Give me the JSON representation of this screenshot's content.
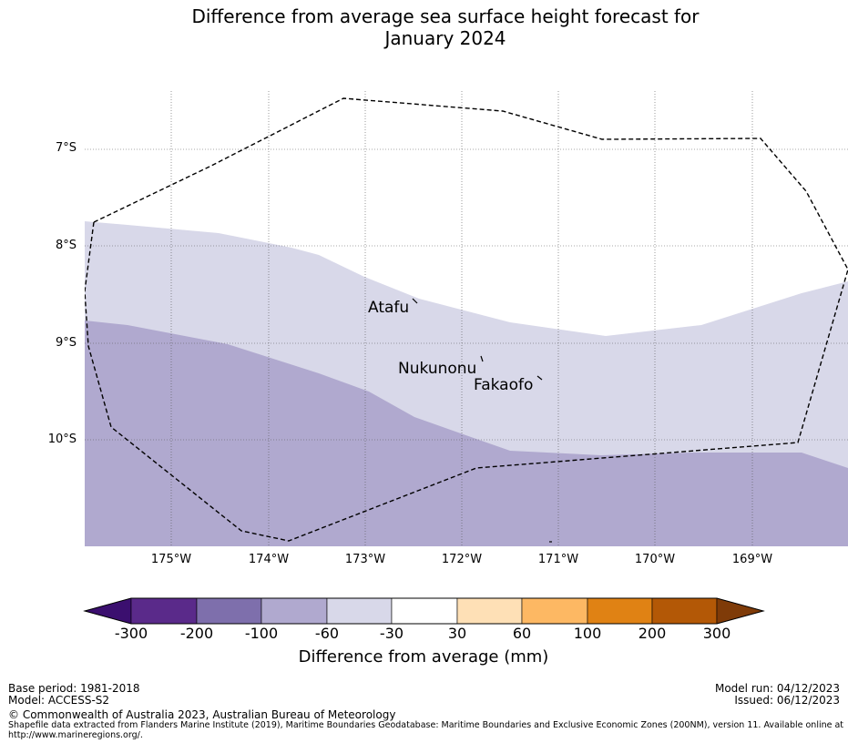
{
  "title_line1": "Difference from average sea surface height forecast for",
  "title_line2": "January 2024",
  "map": {
    "lat_labels": [
      "7°S",
      "8°S",
      "9°S",
      "10°S"
    ],
    "lon_labels": [
      "175°W",
      "174°W",
      "173°W",
      "172°W",
      "171°W",
      "170°W",
      "169°W"
    ],
    "places": {
      "atafu": "Atafu",
      "nukunonu": "Nukunonu",
      "fakaofo": "Fakaofo"
    },
    "colors": {
      "band_minus60_minus30": "#d8d8e9",
      "band_minus100_minus60": "#b0a9cf",
      "eez_line": "#000000",
      "grid": "#555555"
    }
  },
  "colorbar": {
    "labels": [
      "-300",
      "-200",
      "-100",
      "-60",
      "-30",
      "30",
      "60",
      "100",
      "200",
      "300"
    ],
    "colors": [
      "#3b0f6f",
      "#5a2a8a",
      "#7e6fac",
      "#b0a9cf",
      "#d8d8e9",
      "#ffffff",
      "#fee0b6",
      "#fdb863",
      "#e08214",
      "#b35806",
      "#7f3b08"
    ],
    "title": "Difference from average (mm)"
  },
  "footer": {
    "base_period": "Base period: 1981-2018",
    "model": "Model: ACCESS-S2",
    "model_run": "Model run: 04/12/2023",
    "issued": "Issued: 06/12/2023",
    "copyright": "© Commonwealth of Australia 2023, Australian Bureau of Meteorology",
    "shapefile_line1": "Shapefile data extracted from Flanders Marine Institute (2019), Maritime Boundaries Geodatabase: Maritime Boundaries and Exclusive Economic Zones (200NM), version 11. Available online at",
    "shapefile_line2": "http://www.marineregions.org/."
  }
}
